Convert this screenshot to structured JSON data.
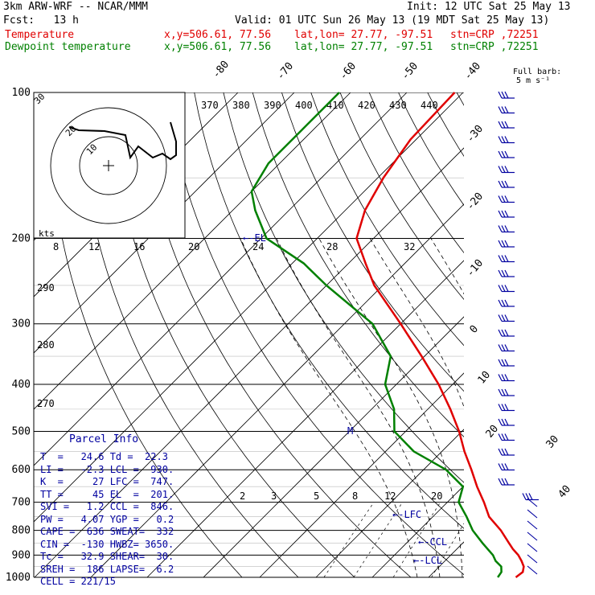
{
  "header": {
    "model": "3km ARW-WRF -- NCAR/MMM",
    "init": "Init: 12 UTC Sat 25 May 13",
    "fcst": "Fcst:   13 h",
    "valid": "Valid: 01 UTC Sun 26 May 13 (19 MDT Sat 25 May 13)",
    "temp_label": "Temperature",
    "dew_label": "Dewpoint temperature",
    "coords": "x,y=506.61, 77.56",
    "latlon": "lat,lon= 27.77, -97.51",
    "stn": "stn=CRP ,72251",
    "barb_label": "Full barb:",
    "barb_unit": "5 m s⁻¹"
  },
  "parcel": {
    "title": "Parcel Info",
    "rows": [
      "T  =   24.6 Td =  22.3",
      "LI =   -2.3 LCL =  930.",
      "K  =     27 LFC =  747.",
      "TT =     45 EL  =  201.",
      "SVI =   1.2 CCL =  846.",
      "PW =   4.07 YGP =   0.2",
      "CAPE =  636 SWEAT=  332",
      "CIN =  -130 HWBZ= 3650.",
      "Tc =   32.9 SHEAR=  30.",
      "SREH =  186 LAPSE=  6.2",
      "CELL = 221/15"
    ]
  },
  "colors": {
    "temperature": "#e00000",
    "dewpoint": "#008000",
    "grid": "#000000",
    "mixing": "#000000",
    "annot": "#0000a0",
    "barb": "#0000a0"
  },
  "chart_data": {
    "type": "line",
    "title": "",
    "ylabel": "",
    "y_scale": "log-pressure",
    "ylim": [
      1000,
      100
    ],
    "pressure_ticks": [
      100,
      200,
      300,
      400,
      500,
      600,
      700,
      800,
      900,
      1000
    ],
    "isotherm_labels": [
      "-80",
      "-70",
      "-60",
      "-50",
      "-40",
      "-30",
      "-20",
      "-10",
      "0",
      "10",
      "20",
      "30",
      "40"
    ],
    "theta_labels": [
      "370",
      "380",
      "390",
      "400",
      "410",
      "420",
      "430",
      "440"
    ],
    "low_theta_labels": [
      "290",
      "280",
      "270"
    ],
    "mixing_labels": [
      "2",
      "3",
      "5",
      "8",
      "12",
      "20"
    ],
    "hodo_speed_labels": [
      "8",
      "12",
      "16",
      "20",
      "24",
      "28",
      "32"
    ],
    "hodo_labels": [
      "kts",
      "10",
      "20"
    ],
    "level_labels": [
      "EL",
      "LFC",
      "CCL",
      "LCL",
      "M"
    ],
    "series": [
      {
        "name": "Temperature",
        "points": [
          [
            1000,
            25.5
          ],
          [
            975,
            25.8
          ],
          [
            950,
            25.0
          ],
          [
            925,
            23.6
          ],
          [
            900,
            22.0
          ],
          [
            875,
            20.0
          ],
          [
            850,
            18.2
          ],
          [
            800,
            14.5
          ],
          [
            750,
            10.0
          ],
          [
            700,
            6.5
          ],
          [
            650,
            2.5
          ],
          [
            600,
            -1.5
          ],
          [
            550,
            -6.0
          ],
          [
            500,
            -10.5
          ],
          [
            450,
            -16.0
          ],
          [
            400,
            -22.5
          ],
          [
            350,
            -30.5
          ],
          [
            300,
            -40.0
          ],
          [
            250,
            -51.5
          ],
          [
            225,
            -57.0
          ],
          [
            200,
            -63.0
          ],
          [
            175,
            -66.5
          ],
          [
            150,
            -69.0
          ],
          [
            125,
            -71.0
          ],
          [
            100,
            -71.5
          ]
        ]
      },
      {
        "name": "Dewpoint temperature",
        "points": [
          [
            1000,
            22.3
          ],
          [
            975,
            22.0
          ],
          [
            950,
            21.0
          ],
          [
            925,
            19.0
          ],
          [
            900,
            17.5
          ],
          [
            850,
            13.5
          ],
          [
            800,
            9.5
          ],
          [
            750,
            6.0
          ],
          [
            700,
            2.0
          ],
          [
            650,
            0.0
          ],
          [
            600,
            -6.0
          ],
          [
            550,
            -15.0
          ],
          [
            500,
            -22.0
          ],
          [
            450,
            -26.0
          ],
          [
            400,
            -32.0
          ],
          [
            350,
            -36.0
          ],
          [
            300,
            -45.0
          ],
          [
            250,
            -60.0
          ],
          [
            225,
            -68.0
          ],
          [
            200,
            -79.0
          ],
          [
            175,
            -86.0
          ],
          [
            160,
            -90.0
          ],
          [
            140,
            -92.0
          ],
          [
            120,
            -92.0
          ],
          [
            100,
            -92.0
          ]
        ]
      }
    ]
  }
}
